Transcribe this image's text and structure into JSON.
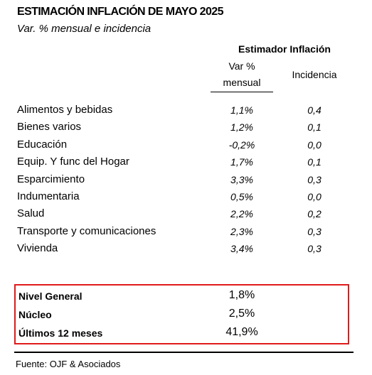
{
  "title": "ESTIMACIÓN INFLACIÓN DE MAYO 2025",
  "subtitle": "Var. % mensual e incidencia",
  "table": {
    "group_header": "Estimador Inflación",
    "col_var_line1": "Var %",
    "col_var_line2": "mensual",
    "col_inc": "Incidencia",
    "rows": [
      {
        "label": "Alimentos y bebidas",
        "var": "1,1%",
        "inc": "0,4"
      },
      {
        "label": "Bienes varios",
        "var": "1,2%",
        "inc": "0,1"
      },
      {
        "label": "Educación",
        "var": "-0,2%",
        "inc": "0,0"
      },
      {
        "label": "Equip. Y func del Hogar",
        "var": "1,7%",
        "inc": "0,1"
      },
      {
        "label": "Esparcimiento",
        "var": "3,3%",
        "inc": "0,3"
      },
      {
        "label": "Indumentaria",
        "var": "0,5%",
        "inc": "0,0"
      },
      {
        "label": "Salud",
        "var": "2,2%",
        "inc": "0,2"
      },
      {
        "label": "Transporte y comunicaciones",
        "var": "2,3%",
        "inc": "0,3"
      },
      {
        "label": "Vivienda",
        "var": "3,4%",
        "inc": "0,3"
      }
    ]
  },
  "summary": [
    {
      "label": "Nivel General",
      "value": "1,8%"
    },
    {
      "label": "Núcleo",
      "value": "2,5%"
    },
    {
      "label": "Últimos 12 meses",
      "value": "41,9%"
    }
  ],
  "source": "Fuente: OJF & Asociados",
  "colors": {
    "highlight_border": "#e01b1b"
  }
}
